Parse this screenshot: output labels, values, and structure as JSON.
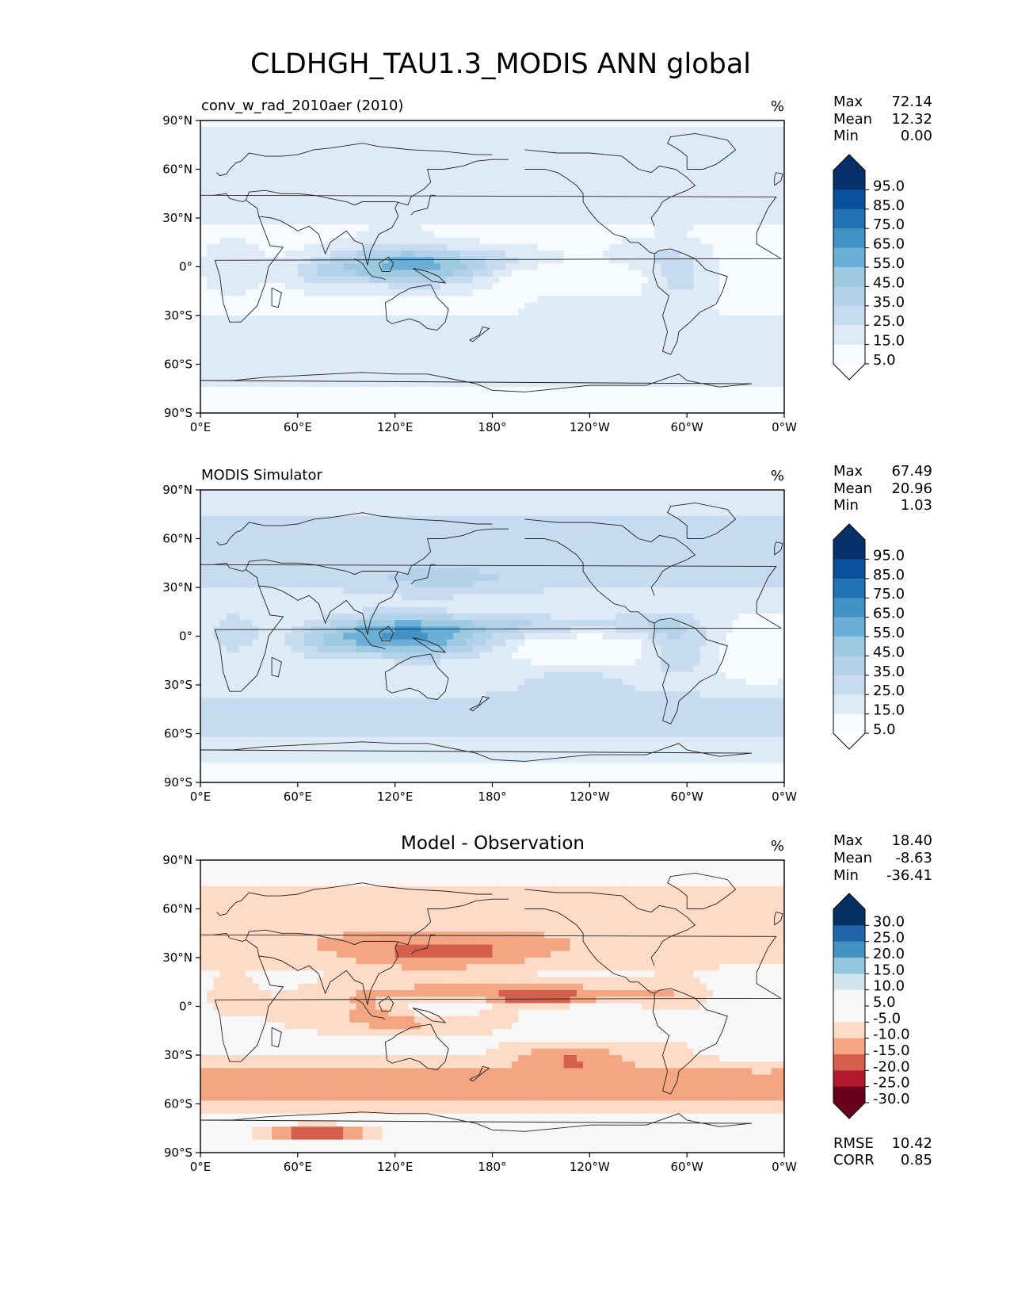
{
  "figure": {
    "title": "CLDHGH_TAU1.3_MODIS ANN global"
  },
  "axes": {
    "lat_ticks": [
      "90°N",
      "60°N",
      "30°N",
      "0°",
      "30°S",
      "60°S",
      "90°S"
    ],
    "lon_ticks": [
      "0°E",
      "60°E",
      "120°E",
      "180°",
      "120°W",
      "60°W",
      "0°W"
    ],
    "xlim": [
      0,
      360
    ],
    "ylim": [
      -90,
      90
    ]
  },
  "colors": {
    "blues": [
      "#f7fbff",
      "#deebf7",
      "#c6dbef",
      "#b3d2e9",
      "#9ecae1",
      "#6baed6",
      "#4292c6",
      "#2171b5",
      "#08519c",
      "#08306b"
    ],
    "diverging": [
      "#67001f",
      "#b2182b",
      "#d6604d",
      "#f4a582",
      "#fddbc7",
      "#f7f7f7",
      "#d1e5f0",
      "#92c5de",
      "#4393c3",
      "#2166ac",
      "#053061"
    ],
    "coast": "#222222"
  },
  "chart_data": [
    {
      "type": "heatmap",
      "title": "conv_w_rad_2010aer (2010)",
      "units": "%",
      "stats": {
        "max_label": "Max",
        "max": "72.14",
        "mean_label": "Mean",
        "mean": "12.32",
        "min_label": "Min",
        "min": "0.00"
      },
      "colorbar_ticks": [
        "95.0",
        "85.0",
        "75.0",
        "65.0",
        "55.0",
        "45.0",
        "35.0",
        "25.0",
        "15.0",
        "5.0"
      ],
      "levels": [
        0,
        5,
        15,
        25,
        35,
        45,
        55,
        65,
        75,
        85,
        95,
        100
      ],
      "field": "model"
    },
    {
      "type": "heatmap",
      "title": "MODIS Simulator",
      "units": "%",
      "stats": {
        "max_label": "Max",
        "max": "67.49",
        "mean_label": "Mean",
        "mean": "20.96",
        "min_label": "Min",
        "min": "1.03"
      },
      "colorbar_ticks": [
        "95.0",
        "85.0",
        "75.0",
        "65.0",
        "55.0",
        "45.0",
        "35.0",
        "25.0",
        "15.0",
        "5.0"
      ],
      "levels": [
        0,
        5,
        15,
        25,
        35,
        45,
        55,
        65,
        75,
        85,
        95,
        100
      ],
      "field": "obs"
    },
    {
      "type": "heatmap",
      "title": "Model - Observation",
      "units": "%",
      "stats": {
        "max_label": "Max",
        "max": "18.40",
        "mean_label": "Mean",
        "mean": "-8.63",
        "min_label": "Min",
        "min": "-36.41"
      },
      "colorbar_ticks": [
        "30.0",
        "25.0",
        "20.0",
        "15.0",
        "10.0",
        "5.0",
        "-5.0",
        "-10.0",
        "-15.0",
        "-20.0",
        "-25.0",
        "-30.0"
      ],
      "levels": [
        -35,
        -30,
        -25,
        -20,
        -15,
        -10,
        -5,
        5,
        10,
        15,
        20,
        25,
        30,
        35
      ],
      "field": "diff",
      "rmse_label": "RMSE",
      "rmse": "10.42",
      "corr_label": "CORR",
      "corr": "0.85"
    }
  ]
}
